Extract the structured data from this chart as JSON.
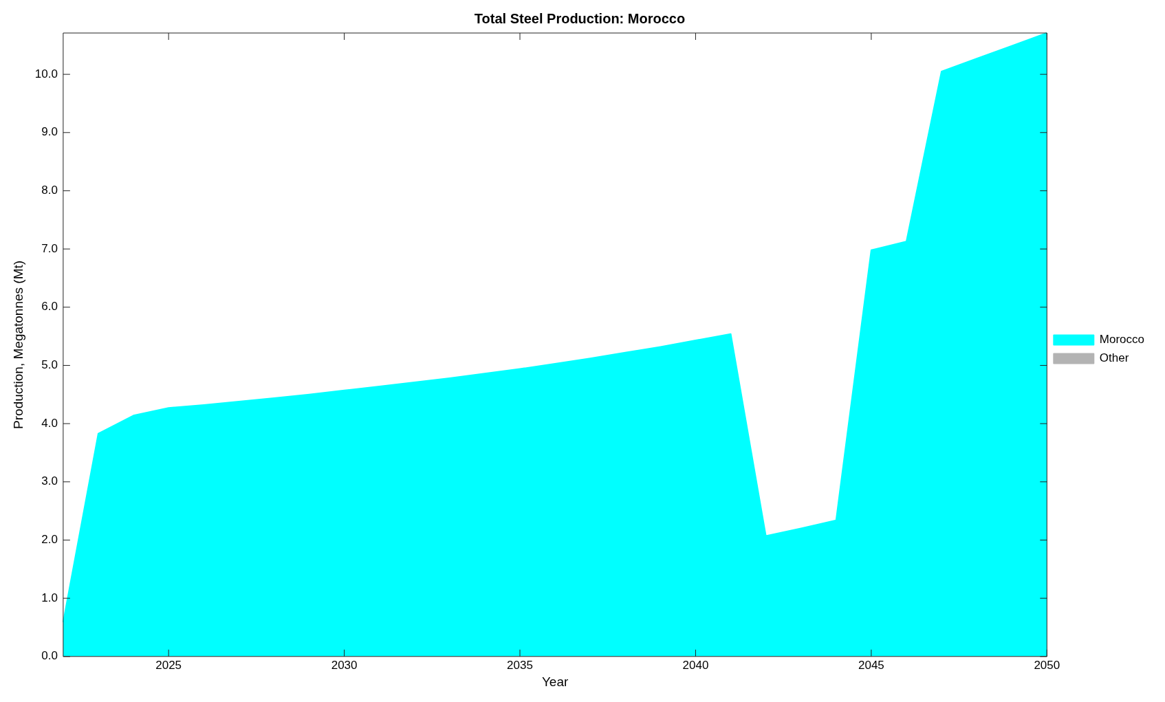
{
  "chart_data": {
    "type": "area",
    "title": "Total Steel Production: Morocco",
    "xlabel": "Year",
    "ylabel": "Production, Megatonnes (Mt)",
    "x": [
      2022,
      2023,
      2024,
      2025,
      2026,
      2027,
      2028,
      2029,
      2030,
      2031,
      2032,
      2033,
      2034,
      2035,
      2036,
      2037,
      2038,
      2039,
      2040,
      2041,
      2042,
      2043,
      2044,
      2045,
      2046,
      2047,
      2048,
      2049,
      2050
    ],
    "series": [
      {
        "name": "Morocco",
        "color": "#00ffff",
        "values": [
          0.59,
          3.83,
          4.14,
          4.27,
          4.32,
          4.38,
          4.44,
          4.5,
          4.57,
          4.64,
          4.71,
          4.78,
          4.86,
          4.94,
          5.03,
          5.12,
          5.22,
          5.32,
          5.43,
          5.54,
          2.07,
          2.2,
          2.34,
          6.98,
          7.13,
          10.05,
          10.27,
          10.49,
          10.71
        ]
      },
      {
        "name": "Other",
        "color": "#b3b3b3",
        "values": [
          null,
          null,
          null,
          null,
          null,
          null,
          null,
          null,
          null,
          null,
          null,
          null,
          null,
          null,
          null,
          null,
          null,
          null,
          null,
          null,
          null,
          null,
          null,
          null,
          null,
          null,
          null,
          null,
          null
        ]
      }
    ],
    "xlim": [
      2022,
      2050
    ],
    "xticks": [
      2025,
      2030,
      2035,
      2040,
      2045,
      2050
    ],
    "ylim": [
      0,
      10.71
    ],
    "yticks": [
      {
        "value": 0,
        "label": "0.0"
      },
      {
        "value": 1,
        "label": "1.0"
      },
      {
        "value": 2,
        "label": "2.0"
      },
      {
        "value": 3,
        "label": "3.0"
      },
      {
        "value": 4,
        "label": "4.0"
      },
      {
        "value": 5,
        "label": "5.0"
      },
      {
        "value": 6,
        "label": "6.0"
      },
      {
        "value": 7,
        "label": "7.0"
      },
      {
        "value": 8,
        "label": "8.0"
      },
      {
        "value": 9,
        "label": "9.0"
      },
      {
        "value": 10,
        "label": "10.0"
      }
    ],
    "grid": false,
    "legend": "right"
  }
}
